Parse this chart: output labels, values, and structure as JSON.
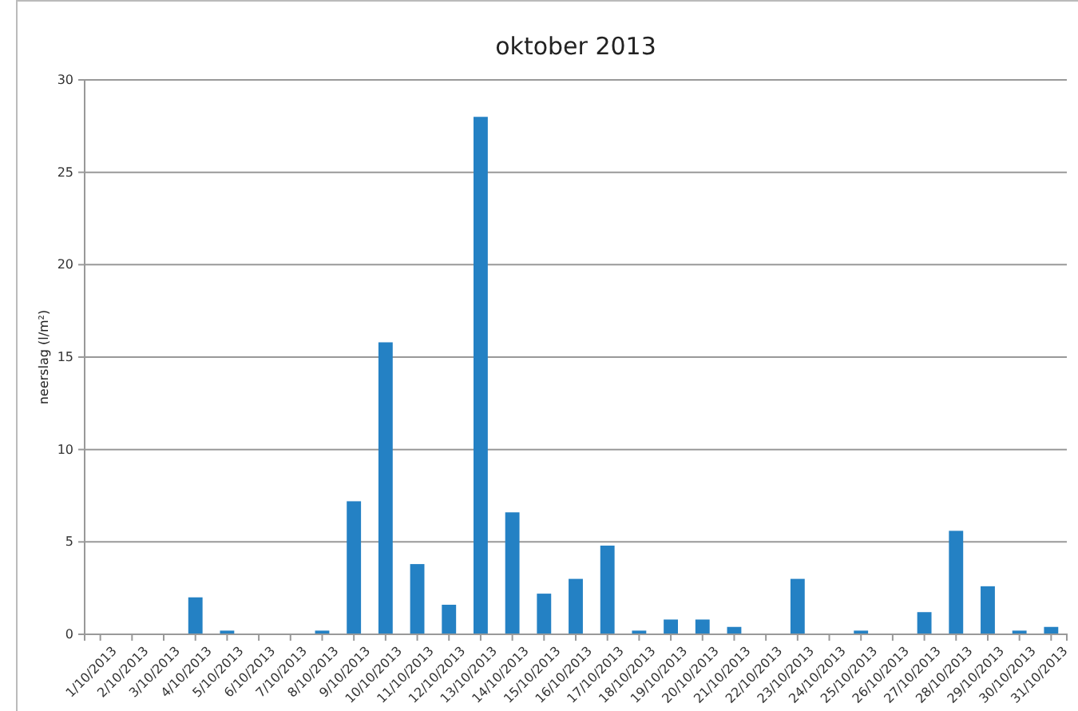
{
  "chart_data": {
    "type": "bar",
    "title": "oktober 2013",
    "ylabel": "neerslag (l/m²)",
    "categories": [
      "1/10/2013",
      "2/10/2013",
      "3/10/2013",
      "4/10/2013",
      "5/10/2013",
      "6/10/2013",
      "7/10/2013",
      "8/10/2013",
      "9/10/2013",
      "10/10/2013",
      "11/10/2013",
      "12/10/2013",
      "13/10/2013",
      "14/10/2013",
      "15/10/2013",
      "16/10/2013",
      "17/10/2013",
      "18/10/2013",
      "19/10/2013",
      "20/10/2013",
      "21/10/2013",
      "22/10/2013",
      "23/10/2013",
      "24/10/2013",
      "25/10/2013",
      "26/10/2013",
      "27/10/2013",
      "28/10/2013",
      "29/10/2013",
      "30/10/2013",
      "31/10/2013"
    ],
    "values": [
      0,
      0,
      0,
      2,
      0.2,
      0,
      0,
      0.2,
      7.2,
      15.8,
      3.8,
      1.6,
      28,
      6.6,
      2.2,
      3,
      4.8,
      0.2,
      0.8,
      0.8,
      0.4,
      0,
      3,
      0,
      0.2,
      0,
      1.2,
      5.6,
      2.6,
      0.2,
      0.4
    ],
    "color": "#2481c4",
    "ylim": [
      0,
      30
    ],
    "yticks": [
      0,
      5,
      10,
      15,
      20,
      25,
      30
    ],
    "grid": "y"
  }
}
